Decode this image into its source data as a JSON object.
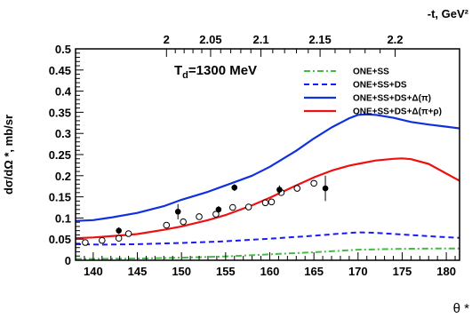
{
  "chart_data": {
    "type": "line",
    "title": "",
    "annotation": {
      "text": "T",
      "subscript": "d",
      "suffix": "=1300 MeV"
    },
    "xlabel": "θ *",
    "ylabel": "dσ/dΩ *, mb/sr",
    "top_axis_label": "-t, GeV²",
    "xlim": [
      138,
      181.5
    ],
    "ylim": [
      0,
      0.5
    ],
    "x_ticks": [
      "140",
      "145",
      "150",
      "155",
      "160",
      "165",
      "170",
      "175",
      "180"
    ],
    "y_ticks": [
      "0",
      "0.05",
      "0.1",
      "0.15",
      "0.2",
      "0.25",
      "0.3",
      "0.35",
      "0.4",
      "0.45",
      "0.5"
    ],
    "top_ticks": [
      {
        "label": "2",
        "theta": 148.3
      },
      {
        "label": "2.05",
        "theta": 153.3
      },
      {
        "label": "2.1",
        "theta": 159.0
      },
      {
        "label": "2.15",
        "theta": 165.7
      },
      {
        "label": "2.2",
        "theta": 174.2
      }
    ],
    "grid": false,
    "legend_position": "top-right",
    "series": [
      {
        "name": "ONE+SS",
        "style": "dashdot",
        "color": "#44bb44",
        "x": [
          138,
          145,
          150,
          155,
          160,
          165,
          170,
          175,
          180,
          181.5
        ],
        "y": [
          0.003,
          0.004,
          0.006,
          0.009,
          0.014,
          0.019,
          0.025,
          0.027,
          0.028,
          0.028
        ]
      },
      {
        "name": "ONE+SS+DS",
        "style": "dashed",
        "color": "#1a1aff",
        "x": [
          138,
          141,
          145,
          150,
          155,
          160,
          165,
          168,
          170,
          172,
          175,
          178,
          181.5
        ],
        "y": [
          0.038,
          0.037,
          0.038,
          0.041,
          0.045,
          0.051,
          0.058,
          0.063,
          0.066,
          0.065,
          0.061,
          0.057,
          0.053
        ]
      },
      {
        "name": "ONE+SS+DS+Δ(π)",
        "style": "solid",
        "color": "#1030e0",
        "x": [
          138,
          140,
          142,
          145,
          148,
          150,
          153,
          155,
          158,
          160,
          163,
          165,
          167,
          169,
          170,
          171,
          172,
          174,
          176,
          178,
          180,
          181.5
        ],
        "y": [
          0.093,
          0.095,
          0.101,
          0.112,
          0.128,
          0.143,
          0.162,
          0.177,
          0.2,
          0.221,
          0.259,
          0.288,
          0.314,
          0.336,
          0.344,
          0.345,
          0.344,
          0.337,
          0.327,
          0.321,
          0.316,
          0.312
        ]
      },
      {
        "name": "ONE+SS+DS+Δ(π+ρ)",
        "style": "solid",
        "color": "#ee1111",
        "x": [
          138,
          140,
          142,
          145,
          148,
          150,
          153,
          155,
          158,
          160,
          163,
          165,
          167,
          169,
          170,
          172,
          174,
          175,
          176,
          178,
          180,
          181.5
        ],
        "y": [
          0.052,
          0.054,
          0.057,
          0.062,
          0.072,
          0.08,
          0.095,
          0.107,
          0.13,
          0.148,
          0.177,
          0.196,
          0.212,
          0.224,
          0.228,
          0.236,
          0.24,
          0.241,
          0.239,
          0.228,
          0.205,
          0.188
        ]
      }
    ],
    "data_filled": {
      "x": [
        142.9,
        149.6,
        154.2,
        156.0,
        161.1,
        166.3
      ],
      "y": [
        0.07,
        0.115,
        0.12,
        0.172,
        0.167,
        0.17
      ],
      "yerr": [
        0.008,
        0.018,
        0.008,
        0.008,
        0.01,
        0.03
      ]
    },
    "data_open": {
      "x": [
        139.1,
        141.0,
        142.9,
        144.0,
        148.3,
        150.2,
        152.0,
        153.9,
        155.8,
        157.6,
        159.5,
        160.2,
        161.3,
        163.1,
        165.0
      ],
      "y": [
        0.042,
        0.047,
        0.052,
        0.063,
        0.083,
        0.091,
        0.103,
        0.109,
        0.125,
        0.126,
        0.136,
        0.138,
        0.16,
        0.17,
        0.182
      ]
    }
  }
}
